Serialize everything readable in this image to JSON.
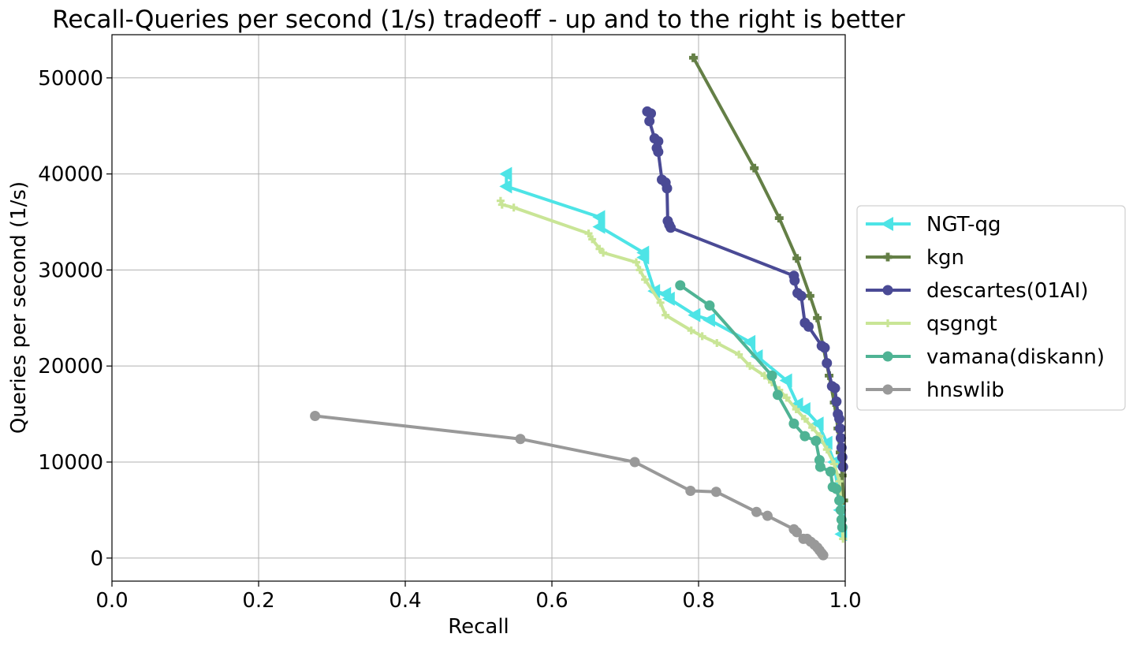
{
  "chart_data": {
    "type": "line",
    "title": "Recall-Queries per second (1/s) tradeoff - up and to the right is better",
    "xlabel": "Recall",
    "ylabel": "Queries per second (1/s)",
    "xlim": [
      0.0,
      1.0
    ],
    "ylim": [
      -2400,
      54500
    ],
    "xticks": [
      "0.0",
      "0.2",
      "0.4",
      "0.6",
      "0.8",
      "1.0"
    ],
    "xtick_values": [
      0.0,
      0.2,
      0.4,
      0.6,
      0.8,
      1.0
    ],
    "yticks": [
      "0",
      "10000",
      "20000",
      "30000",
      "40000",
      "50000"
    ],
    "ytick_values": [
      0,
      10000,
      20000,
      30000,
      40000,
      50000
    ],
    "grid": true,
    "legend_position": "right, outside plot",
    "series": [
      {
        "name": "NGT-qg",
        "color": "#4de4e6",
        "marker": "triangle-left",
        "points": [
          [
            0.538,
            40000
          ],
          [
            0.538,
            38700
          ],
          [
            0.665,
            35500
          ],
          [
            0.665,
            34500
          ],
          [
            0.725,
            31800
          ],
          [
            0.725,
            31300
          ],
          [
            0.74,
            27800
          ],
          [
            0.755,
            27500
          ],
          [
            0.76,
            27000
          ],
          [
            0.795,
            25300
          ],
          [
            0.815,
            24800
          ],
          [
            0.87,
            22500
          ],
          [
            0.88,
            21000
          ],
          [
            0.92,
            18500
          ],
          [
            0.935,
            16000
          ],
          [
            0.945,
            15500
          ],
          [
            0.963,
            14000
          ],
          [
            0.975,
            12000
          ],
          [
            0.985,
            10000
          ],
          [
            0.99,
            7000
          ],
          [
            0.993,
            5000
          ],
          [
            0.995,
            2500
          ]
        ]
      },
      {
        "name": "kgn",
        "color": "#647f46",
        "marker": "plus-filled",
        "points": [
          [
            0.793,
            52100
          ],
          [
            0.876,
            40600
          ],
          [
            0.91,
            35400
          ],
          [
            0.934,
            31200
          ],
          [
            0.952,
            27300
          ],
          [
            0.962,
            25000
          ],
          [
            0.97,
            22000
          ],
          [
            0.978,
            19000
          ],
          [
            0.985,
            16200
          ],
          [
            0.99,
            13500
          ],
          [
            0.993,
            11000
          ],
          [
            0.996,
            8600
          ],
          [
            0.998,
            6000
          ]
        ]
      },
      {
        "name": "descartes(01AI)",
        "color": "#4a4a95",
        "marker": "circle",
        "points": [
          [
            0.73,
            46500
          ],
          [
            0.735,
            46300
          ],
          [
            0.733,
            45500
          ],
          [
            0.74,
            43700
          ],
          [
            0.745,
            43400
          ],
          [
            0.743,
            42700
          ],
          [
            0.745,
            42300
          ],
          [
            0.75,
            39400
          ],
          [
            0.755,
            39100
          ],
          [
            0.757,
            38500
          ],
          [
            0.758,
            35100
          ],
          [
            0.76,
            34700
          ],
          [
            0.762,
            34400
          ],
          [
            0.93,
            29400
          ],
          [
            0.931,
            28900
          ],
          [
            0.935,
            27600
          ],
          [
            0.94,
            27300
          ],
          [
            0.945,
            24500
          ],
          [
            0.95,
            24100
          ],
          [
            0.968,
            22100
          ],
          [
            0.972,
            21900
          ],
          [
            0.975,
            20300
          ],
          [
            0.982,
            17900
          ],
          [
            0.986,
            17700
          ],
          [
            0.988,
            16300
          ],
          [
            0.99,
            15000
          ],
          [
            0.992,
            14500
          ],
          [
            0.993,
            13500
          ],
          [
            0.994,
            12500
          ],
          [
            0.995,
            11500
          ],
          [
            0.996,
            10500
          ],
          [
            0.997,
            9500
          ]
        ]
      },
      {
        "name": "qsgngt",
        "color": "#c9e596",
        "marker": "plus",
        "points": [
          [
            0.53,
            37200
          ],
          [
            0.532,
            36800
          ],
          [
            0.548,
            36500
          ],
          [
            0.65,
            33800
          ],
          [
            0.655,
            33200
          ],
          [
            0.665,
            32200
          ],
          [
            0.67,
            31800
          ],
          [
            0.715,
            30800
          ],
          [
            0.72,
            30000
          ],
          [
            0.727,
            29000
          ],
          [
            0.748,
            26600
          ],
          [
            0.755,
            25300
          ],
          [
            0.79,
            23700
          ],
          [
            0.805,
            23100
          ],
          [
            0.825,
            22400
          ],
          [
            0.855,
            21200
          ],
          [
            0.87,
            20000
          ],
          [
            0.89,
            19000
          ],
          [
            0.9,
            18300
          ],
          [
            0.91,
            17500
          ],
          [
            0.92,
            16700
          ],
          [
            0.933,
            15500
          ],
          [
            0.945,
            14500
          ],
          [
            0.955,
            13600
          ],
          [
            0.965,
            12700
          ],
          [
            0.975,
            11300
          ],
          [
            0.985,
            9800
          ],
          [
            0.992,
            8000
          ],
          [
            0.995,
            5000
          ],
          [
            0.997,
            2000
          ]
        ]
      },
      {
        "name": "vamana(diskann)",
        "color": "#4fb394",
        "marker": "circle",
        "points": [
          [
            0.775,
            28400
          ],
          [
            0.815,
            26300
          ],
          [
            0.9,
            19000
          ],
          [
            0.908,
            17000
          ],
          [
            0.93,
            14000
          ],
          [
            0.945,
            12700
          ],
          [
            0.96,
            12200
          ],
          [
            0.965,
            10200
          ],
          [
            0.966,
            9500
          ],
          [
            0.98,
            9000
          ],
          [
            0.983,
            7400
          ],
          [
            0.988,
            7200
          ],
          [
            0.992,
            6000
          ],
          [
            0.994,
            5000
          ],
          [
            0.995,
            4000
          ],
          [
            0.996,
            3200
          ]
        ]
      },
      {
        "name": "hnswlib",
        "color": "#999999",
        "marker": "circle",
        "points": [
          [
            0.277,
            14800
          ],
          [
            0.557,
            12400
          ],
          [
            0.713,
            10000
          ],
          [
            0.789,
            7000
          ],
          [
            0.824,
            6900
          ],
          [
            0.879,
            4800
          ],
          [
            0.894,
            4400
          ],
          [
            0.93,
            3000
          ],
          [
            0.934,
            2700
          ],
          [
            0.943,
            2000
          ],
          [
            0.948,
            2000
          ],
          [
            0.953,
            1700
          ],
          [
            0.958,
            1400
          ],
          [
            0.962,
            1100
          ],
          [
            0.965,
            800
          ],
          [
            0.968,
            500
          ],
          [
            0.97,
            300
          ]
        ]
      }
    ]
  }
}
